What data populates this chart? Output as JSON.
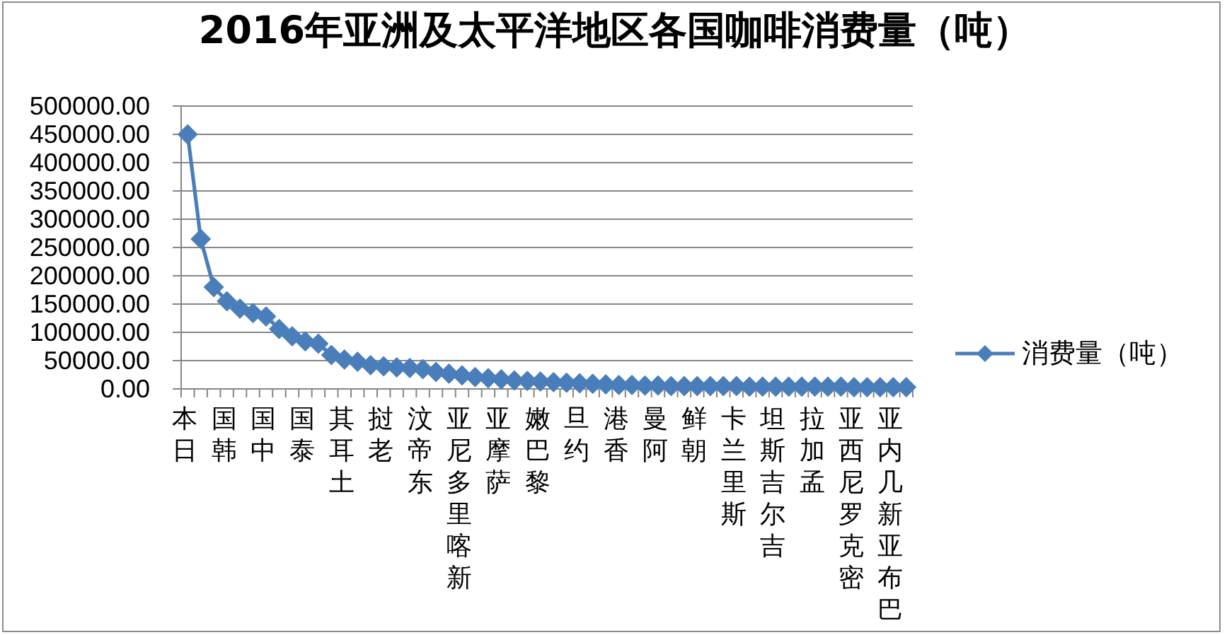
{
  "chart_data": {
    "type": "line",
    "title": "2016年亚洲及太平洋地区各国咖啡消费量（吨）",
    "categories": [
      "日本",
      null,
      null,
      "韩国",
      null,
      null,
      "中国",
      null,
      null,
      "泰国",
      null,
      null,
      "土耳其",
      null,
      null,
      "老挝",
      null,
      null,
      "东帝汶",
      null,
      null,
      "新喀里多尼亚",
      null,
      null,
      "萨摩亚",
      null,
      null,
      "黎巴嫩",
      null,
      null,
      "约旦",
      null,
      null,
      "香港",
      null,
      null,
      "阿曼",
      null,
      null,
      "朝鲜",
      null,
      null,
      "斯里兰卡",
      null,
      null,
      "吉尔吉斯坦",
      null,
      null,
      "孟加拉",
      null,
      null,
      "密克罗尼西亚",
      null,
      null,
      "巴布亚新几内亚",
      null
    ],
    "series": [
      {
        "name": "消费量（吨）",
        "color": "#4a7ebb",
        "values": [
          450000,
          265000,
          180000,
          155000,
          142000,
          134000,
          128000,
          106000,
          93000,
          84000,
          80000,
          60000,
          52000,
          48000,
          42000,
          40000,
          38000,
          37000,
          35000,
          30000,
          27000,
          24000,
          21000,
          19000,
          17000,
          15000,
          14000,
          13000,
          12000,
          11000,
          10000,
          9000,
          8000,
          7000,
          7000,
          6000,
          6000,
          5000,
          5000,
          5000,
          5000,
          5000,
          5000,
          4000,
          4000,
          4000,
          4000,
          4000,
          4000,
          4000,
          4000,
          3000,
          3000,
          3000,
          3000,
          3000
        ]
      }
    ],
    "ylim": [
      0,
      500000
    ],
    "yticks": [
      {
        "value": 0,
        "label": "0.00"
      },
      {
        "value": 50000,
        "label": "50000.00"
      },
      {
        "value": 100000,
        "label": "100000.00"
      },
      {
        "value": 150000,
        "label": "150000.00"
      },
      {
        "value": 200000,
        "label": "200000.00"
      },
      {
        "value": 250000,
        "label": "250000.00"
      },
      {
        "value": 300000,
        "label": "300000.00"
      },
      {
        "value": 350000,
        "label": "350000.00"
      },
      {
        "value": 400000,
        "label": "400000.00"
      },
      {
        "value": 450000,
        "label": "450000.00"
      },
      {
        "value": 500000,
        "label": "500000.00"
      }
    ],
    "grid": "y",
    "legend": "right",
    "marker": "diamond"
  }
}
